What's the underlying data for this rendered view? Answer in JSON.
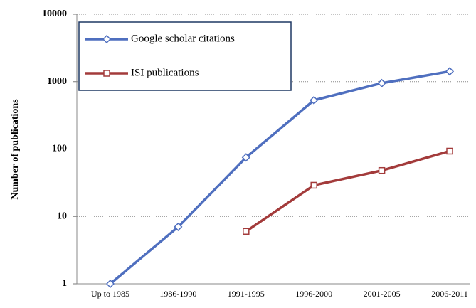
{
  "chart_data": {
    "type": "line",
    "y_label": "Number of publications",
    "categories": [
      "Up to 1985",
      "1986-1990",
      "1991-1995",
      "1996-2000",
      "2001-2005",
      "2006-2011"
    ],
    "series": [
      {
        "name": "Google scholar citations",
        "color": "#4f6fbf",
        "marker": "diamond",
        "values": [
          1,
          7,
          75,
          530,
          950,
          1420
        ]
      },
      {
        "name": "ISI publications",
        "color": "#a33b3b",
        "marker": "square",
        "values": [
          null,
          null,
          6,
          29,
          48,
          93
        ]
      }
    ],
    "ylim": [
      1,
      10000
    ],
    "yticks": [
      1,
      10,
      100,
      1000,
      10000
    ],
    "log_y": true,
    "grid": true,
    "legend": "upper left"
  }
}
